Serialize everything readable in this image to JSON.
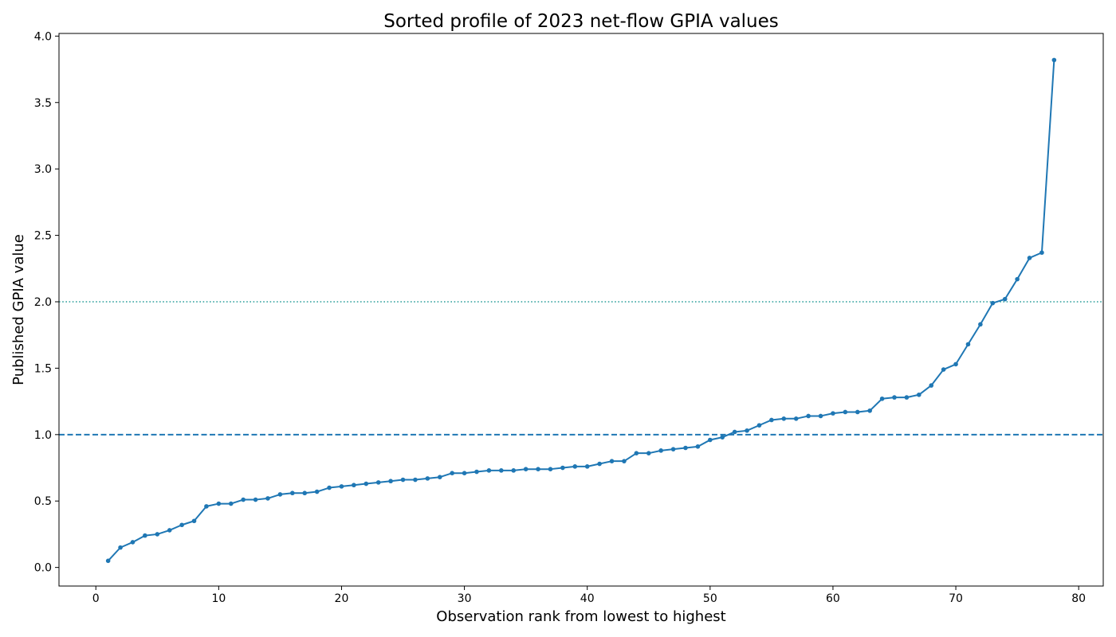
{
  "chart_data": {
    "type": "line",
    "title": "Sorted profile of 2023 net-flow GPIA values",
    "xlabel": "Observation rank from lowest to highest",
    "ylabel": "Published GPIA value",
    "xlim": [
      -3,
      82
    ],
    "ylim": [
      -0.14,
      4.02
    ],
    "x_ticks": [
      0,
      10,
      20,
      30,
      40,
      50,
      60,
      70,
      80
    ],
    "x_tick_labels": [
      "0",
      "10",
      "20",
      "30",
      "40",
      "50",
      "60",
      "70",
      "80"
    ],
    "y_ticks": [
      0.0,
      0.5,
      1.0,
      1.5,
      2.0,
      2.5,
      3.0,
      3.5,
      4.0
    ],
    "y_tick_labels": [
      "0.0",
      "0.5",
      "1.0",
      "1.5",
      "2.0",
      "2.5",
      "3.0",
      "3.5",
      "4.0"
    ],
    "grid": false,
    "legend": "none",
    "reference_lines": [
      {
        "y": 1.0,
        "style": "dashed"
      },
      {
        "y": 2.0,
        "style": "dotted"
      }
    ],
    "series": [
      {
        "color": "#1f77b4",
        "marker": "circle",
        "x": [
          1,
          2,
          3,
          4,
          5,
          6,
          7,
          8,
          9,
          10,
          11,
          12,
          13,
          14,
          15,
          16,
          17,
          18,
          19,
          20,
          21,
          22,
          23,
          24,
          25,
          26,
          27,
          28,
          29,
          30,
          31,
          32,
          33,
          34,
          35,
          36,
          37,
          38,
          39,
          40,
          41,
          42,
          43,
          44,
          45,
          46,
          47,
          48,
          49,
          50,
          51,
          52,
          53,
          54,
          55,
          56,
          57,
          58,
          59,
          60,
          61,
          62,
          63,
          64,
          65,
          66,
          67,
          68,
          69,
          70,
          71,
          72,
          73,
          74,
          75,
          76,
          77,
          78
        ],
        "y": [
          0.05,
          0.15,
          0.19,
          0.24,
          0.25,
          0.28,
          0.32,
          0.35,
          0.46,
          0.48,
          0.48,
          0.51,
          0.51,
          0.52,
          0.55,
          0.56,
          0.56,
          0.57,
          0.6,
          0.61,
          0.62,
          0.63,
          0.64,
          0.65,
          0.66,
          0.66,
          0.67,
          0.68,
          0.71,
          0.71,
          0.72,
          0.73,
          0.73,
          0.73,
          0.74,
          0.74,
          0.74,
          0.75,
          0.76,
          0.76,
          0.78,
          0.8,
          0.8,
          0.86,
          0.86,
          0.88,
          0.89,
          0.9,
          0.91,
          0.96,
          0.98,
          1.02,
          1.03,
          1.07,
          1.11,
          1.12,
          1.12,
          1.14,
          1.14,
          1.16,
          1.17,
          1.17,
          1.18,
          1.27,
          1.28,
          1.28,
          1.3,
          1.37,
          1.49,
          1.53,
          1.68,
          1.83,
          1.99,
          2.02,
          2.17,
          2.33,
          2.37,
          3.82
        ]
      }
    ]
  },
  "colors": {
    "series": "#1f77b4",
    "reference_dashed": "#1f77b4",
    "reference_dotted": "#2a9d9a",
    "axis": "#000000"
  }
}
